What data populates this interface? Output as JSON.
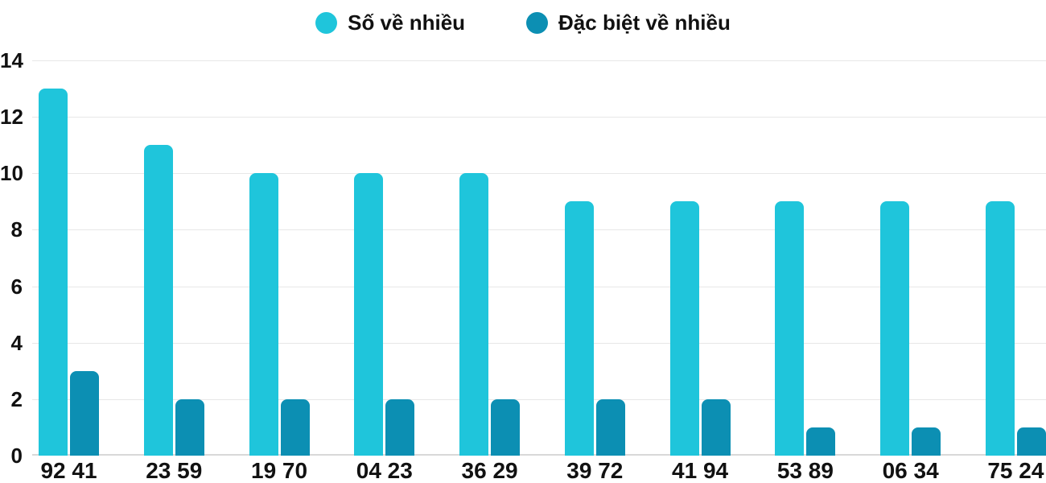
{
  "chart_data": {
    "type": "bar",
    "title": "",
    "categories": [
      "92 41",
      "23 59",
      "19 70",
      "04 23",
      "36 29",
      "39 72",
      "41 94",
      "53 89",
      "06 34",
      "75 24"
    ],
    "series": [
      {
        "name": "Số về nhiều",
        "color": "#1FC5DB",
        "values": [
          13,
          11,
          10,
          10,
          10,
          9,
          9,
          9,
          9,
          9
        ]
      },
      {
        "name": "Đặc biệt về nhiều",
        "color": "#0C8FB3",
        "values": [
          3,
          2,
          2,
          2,
          2,
          2,
          2,
          1,
          1,
          1
        ]
      }
    ],
    "xlabel": "",
    "ylabel": "",
    "ylim": [
      0,
      14
    ],
    "yticks": [
      0,
      2,
      4,
      6,
      8,
      10,
      12,
      14
    ],
    "grid": true,
    "legend_position": "top"
  },
  "colors": {
    "gridline": "#e7e7e7",
    "axis_line": "#d8d8d8",
    "text": "#111111",
    "background": "#ffffff"
  }
}
